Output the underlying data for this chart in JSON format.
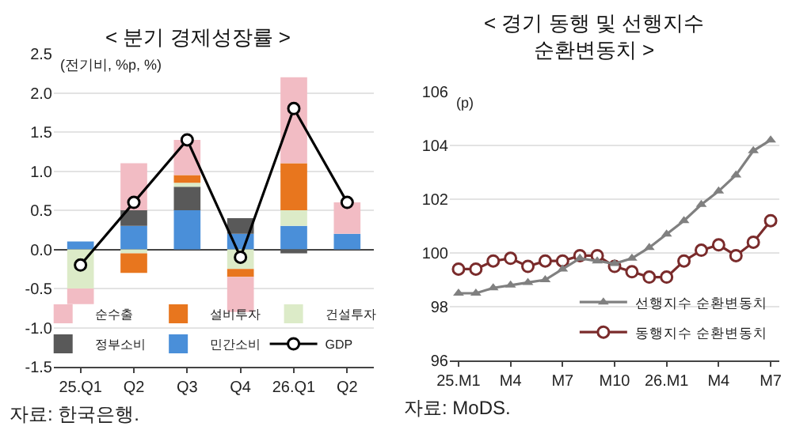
{
  "chart_data": [
    {
      "type": "bar",
      "stacked": true,
      "title": "< 분기 경제성장률 >",
      "categories": [
        "25.Q1",
        "Q2",
        "Q3",
        "Q4",
        "26.Q1",
        "Q2"
      ],
      "series": [
        {
          "name": "GDP",
          "type": "line",
          "color": "#000000",
          "marker": "circle",
          "values": [
            -0.2,
            0.6,
            1.4,
            -0.1,
            1.8,
            0.6
          ]
        },
        {
          "name": "민간소비",
          "color": "#4a8fd9",
          "values": [
            0.1,
            0.3,
            0.5,
            0.2,
            0.3,
            0.2
          ]
        },
        {
          "name": "정부소비",
          "color": "#595959",
          "values": [
            null,
            0.2,
            0.3,
            0.2,
            -0.05,
            null
          ]
        },
        {
          "name": "건설투자",
          "color": "#dcebc8",
          "values": [
            -0.5,
            -0.05,
            0.05,
            -0.25,
            0.2,
            null
          ]
        },
        {
          "name": "설비투자",
          "color": "#e8761e",
          "values": [
            null,
            -0.25,
            0.1,
            -0.1,
            0.6,
            null
          ]
        },
        {
          "name": "순수출",
          "color": "#f2bcc4",
          "values": [
            -0.2,
            0.6,
            0.45,
            -0.45,
            1.1,
            0.4
          ]
        }
      ],
      "ylim": [
        -1.5,
        2.5
      ],
      "yticks": [
        {
          "value": -1.5,
          "label": "-1.5"
        },
        {
          "value": -1,
          "label": "-1.0"
        },
        {
          "value": -0.5,
          "label": "-0.5"
        },
        {
          "value": 0,
          "label": "0.0"
        },
        {
          "value": 0.5,
          "label": "0.5"
        },
        {
          "value": 1,
          "label": "1.0"
        },
        {
          "value": 1.5,
          "label": "1.5"
        },
        {
          "value": 2,
          "label": "2.0"
        },
        {
          "value": 2.5,
          "label": "2.5"
        }
      ],
      "grid": "y",
      "legend": "bottom",
      "annotations": [
        "(전기비, %p, %)",
        "자료: 한국은행."
      ]
    },
    {
      "type": "line",
      "title": "< 경기 동행 및 선행지수\n순환변동치 >",
      "categories": [
        "25.M1",
        null,
        null,
        "M4",
        null,
        null,
        "M7",
        null,
        null,
        "M10",
        null,
        null,
        "26.M1",
        null,
        null,
        "M4",
        null,
        null,
        "M7"
      ],
      "series": [
        {
          "name": "선행지수 순환변동치",
          "color": "#808080",
          "marker": "triangle",
          "values": [
            98.5,
            98.5,
            98.7,
            98.8,
            98.9,
            99.0,
            99.4,
            99.8,
            99.7,
            99.6,
            99.8,
            100.2,
            100.7,
            101.2,
            101.8,
            102.3,
            102.9,
            103.8,
            104.2
          ]
        },
        {
          "name": "동행지수 순환변동치",
          "color": "#7a2b2b",
          "marker": "circle",
          "values": [
            99.4,
            99.4,
            99.7,
            99.8,
            99.5,
            99.7,
            99.7,
            99.9,
            99.9,
            99.5,
            99.3,
            99.1,
            99.1,
            99.7,
            100.1,
            100.3,
            99.9,
            100.4,
            101.2
          ]
        }
      ],
      "ylim": [
        96,
        106
      ],
      "yticks": [
        96,
        98,
        100,
        102,
        104,
        106
      ],
      "grid": "y",
      "legend": "bottom right",
      "annotations": [
        "(p)",
        "자료: MoDS."
      ]
    }
  ]
}
